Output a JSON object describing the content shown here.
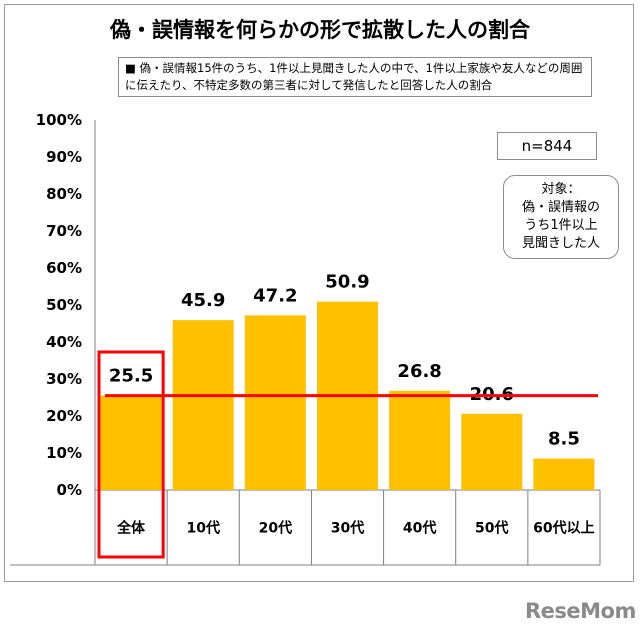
{
  "chart_data": {
    "type": "bar",
    "title": "偽・誤情報を何らかの形で拡散した人の割合",
    "subtitle": "■ 偽・誤情報15件のうち、1件以上見聞きした人の中で、1件以上家族や友人などの周囲に伝えたり、不特定多数の第三者に対して発信したと回答した人の割合",
    "categories": [
      "全体",
      "10代",
      "20代",
      "30代",
      "40代",
      "50代",
      "60代以上"
    ],
    "values": [
      25.5,
      45.9,
      47.2,
      50.9,
      26.8,
      20.6,
      8.5
    ],
    "value_labels": [
      "25.5",
      "45.9",
      "47.2",
      "50.9",
      "26.8",
      "20.6",
      "8.5"
    ],
    "ylim": [
      0,
      100
    ],
    "yticks": [
      "0%",
      "10%",
      "20%",
      "30%",
      "40%",
      "50%",
      "60%",
      "70%",
      "80%",
      "90%",
      "100%"
    ],
    "reference_line": 25.5,
    "highlight_category": "全体",
    "bar_color": "#FFC000",
    "highlight_color": "#FF0000",
    "sample_size": "n=844",
    "target_note": [
      "対象：",
      "偽・誤情報の",
      "うち1件以上",
      "見聞きした人"
    ],
    "grid": false,
    "legend": "none"
  },
  "watermark": "ReseMom"
}
